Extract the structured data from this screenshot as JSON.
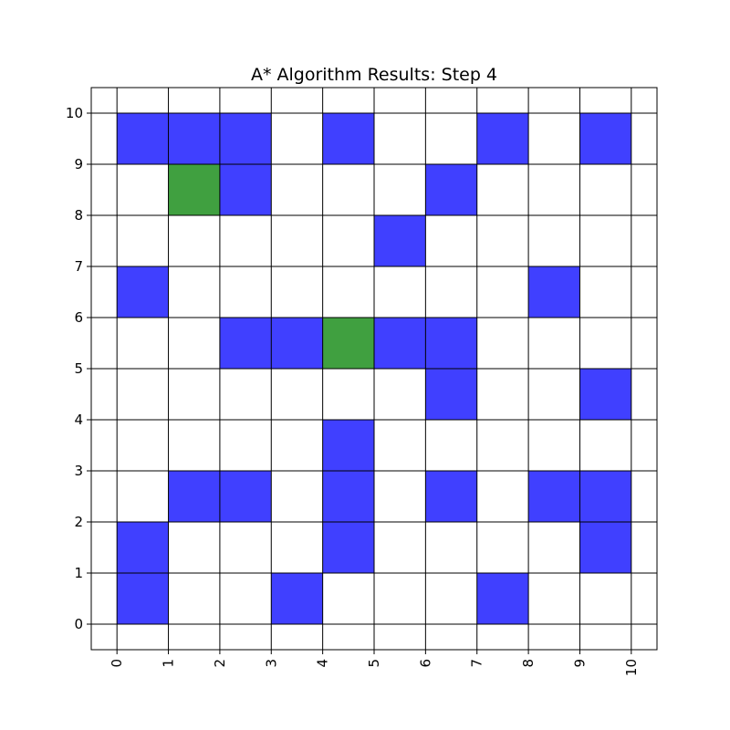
{
  "chart_data": {
    "type": "heatmap",
    "title": "A* Algorithm Results: Step 4",
    "xlabel": "",
    "ylabel": "",
    "xlim": [
      -0.5,
      10.5
    ],
    "ylim": [
      -0.5,
      10.5
    ],
    "x_ticks": [
      "0",
      "1",
      "2",
      "3",
      "4",
      "5",
      "6",
      "7",
      "8",
      "9",
      "10"
    ],
    "y_ticks": [
      "0",
      "1",
      "2",
      "3",
      "4",
      "5",
      "6",
      "7",
      "8",
      "9",
      "10"
    ],
    "grid": true,
    "x_tick_rotation": "vertical",
    "colors": {
      "obstacle": "#4040ff",
      "path": "#40a040",
      "grid": "#000000",
      "background": "#ffffff"
    },
    "cells": [
      {
        "x": 0,
        "y": 9,
        "kind": "obstacle"
      },
      {
        "x": 1,
        "y": 9,
        "kind": "obstacle"
      },
      {
        "x": 2,
        "y": 9,
        "kind": "obstacle"
      },
      {
        "x": 4,
        "y": 9,
        "kind": "obstacle"
      },
      {
        "x": 7,
        "y": 9,
        "kind": "obstacle"
      },
      {
        "x": 9,
        "y": 9,
        "kind": "obstacle"
      },
      {
        "x": 1,
        "y": 8,
        "kind": "path"
      },
      {
        "x": 2,
        "y": 8,
        "kind": "obstacle"
      },
      {
        "x": 6,
        "y": 8,
        "kind": "obstacle"
      },
      {
        "x": 5,
        "y": 7,
        "kind": "obstacle"
      },
      {
        "x": 0,
        "y": 6,
        "kind": "obstacle"
      },
      {
        "x": 8,
        "y": 6,
        "kind": "obstacle"
      },
      {
        "x": 2,
        "y": 5,
        "kind": "obstacle"
      },
      {
        "x": 3,
        "y": 5,
        "kind": "obstacle"
      },
      {
        "x": 4,
        "y": 5,
        "kind": "path"
      },
      {
        "x": 5,
        "y": 5,
        "kind": "obstacle"
      },
      {
        "x": 6,
        "y": 5,
        "kind": "obstacle"
      },
      {
        "x": 6,
        "y": 4,
        "kind": "obstacle"
      },
      {
        "x": 9,
        "y": 4,
        "kind": "obstacle"
      },
      {
        "x": 4,
        "y": 3,
        "kind": "obstacle"
      },
      {
        "x": 1,
        "y": 2,
        "kind": "obstacle"
      },
      {
        "x": 2,
        "y": 2,
        "kind": "obstacle"
      },
      {
        "x": 4,
        "y": 2,
        "kind": "obstacle"
      },
      {
        "x": 6,
        "y": 2,
        "kind": "obstacle"
      },
      {
        "x": 8,
        "y": 2,
        "kind": "obstacle"
      },
      {
        "x": 9,
        "y": 2,
        "kind": "obstacle"
      },
      {
        "x": 0,
        "y": 1,
        "kind": "obstacle"
      },
      {
        "x": 4,
        "y": 1,
        "kind": "obstacle"
      },
      {
        "x": 9,
        "y": 1,
        "kind": "obstacle"
      },
      {
        "x": 0,
        "y": 0,
        "kind": "obstacle"
      },
      {
        "x": 3,
        "y": 0,
        "kind": "obstacle"
      },
      {
        "x": 7,
        "y": 0,
        "kind": "obstacle"
      }
    ]
  }
}
